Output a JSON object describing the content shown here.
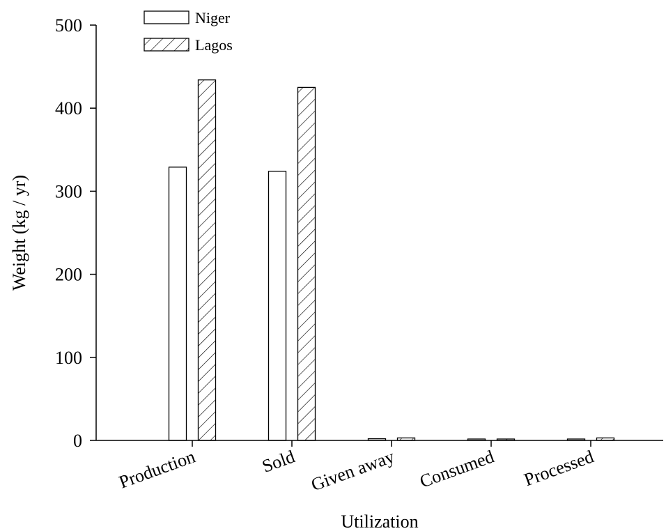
{
  "chart_data": {
    "type": "bar",
    "title": "",
    "xlabel": "Utilization",
    "ylabel": "Weight (kg / yr)",
    "categories": [
      "Production",
      "Sold",
      "Given away",
      "Consumed",
      "Processed"
    ],
    "series": [
      {
        "name": "Niger",
        "fill": "none",
        "values": [
          329,
          324,
          2,
          1.5,
          1
        ]
      },
      {
        "name": "Lagos",
        "fill": "hatched",
        "values": [
          434,
          425,
          3,
          1,
          3
        ]
      }
    ],
    "ylim": [
      0,
      500
    ],
    "yticks": [
      0,
      100,
      200,
      300,
      400,
      500
    ],
    "grid": false,
    "legend_position": "top-left",
    "colors": {
      "stroke": "#000000",
      "background": "#ffffff"
    }
  }
}
